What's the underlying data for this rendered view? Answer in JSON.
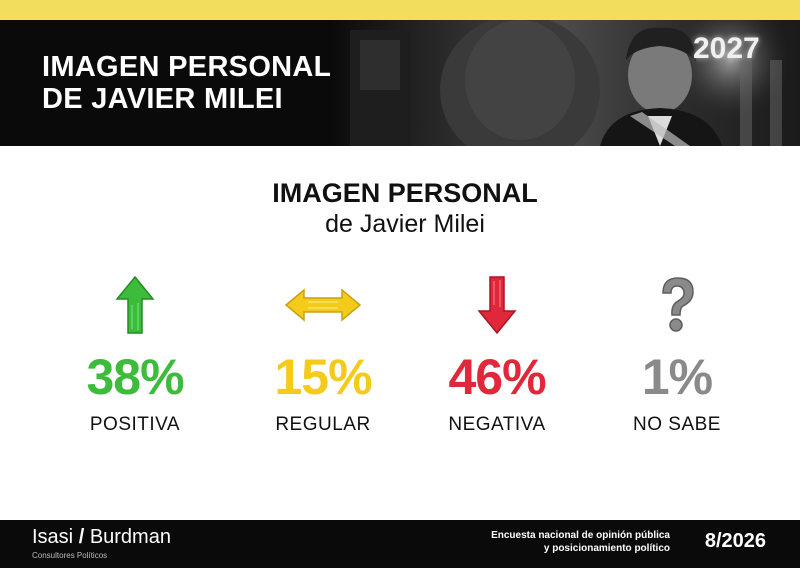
{
  "header": {
    "title_line1": "IMAGEN PERSONAL",
    "title_line2": "DE JAVIER MILEI",
    "photo_badge": "2027"
  },
  "title": "IMAGEN PERSONAL",
  "subtitle": "de Javier Milei",
  "colors": {
    "positiva": "#3dbb3a",
    "regular": "#f4cb1b",
    "negativa": "#e0283a",
    "no_sabe": "#8a8a8a",
    "accent_stripe": "#f2dd5c"
  },
  "indicators": [
    {
      "value": "38%",
      "label": "POSITIVA",
      "icon": "arrow-up-icon"
    },
    {
      "value": "15%",
      "label": "REGULAR",
      "icon": "arrow-left-right-icon"
    },
    {
      "value": "46%",
      "label": "NEGATIVA",
      "icon": "arrow-down-icon"
    },
    {
      "value": "1%",
      "label": "NO SABE",
      "icon": "question-mark-icon"
    }
  ],
  "chart_data": {
    "type": "table",
    "title": "IMAGEN PERSONAL",
    "subtitle": "de Javier Milei",
    "categories": [
      "POSITIVA",
      "REGULAR",
      "NEGATIVA",
      "NO SABE"
    ],
    "values": [
      38,
      15,
      46,
      1
    ],
    "unit": "%"
  },
  "footer": {
    "brand_left": "Isasi",
    "brand_sep": "/",
    "brand_right": "Burdman",
    "brand_sub": "Consultores Políticos",
    "survey_line1": "Encuesta nacional de opinión pública",
    "survey_line2": "y posicionamiento político",
    "date": "8/2026"
  }
}
